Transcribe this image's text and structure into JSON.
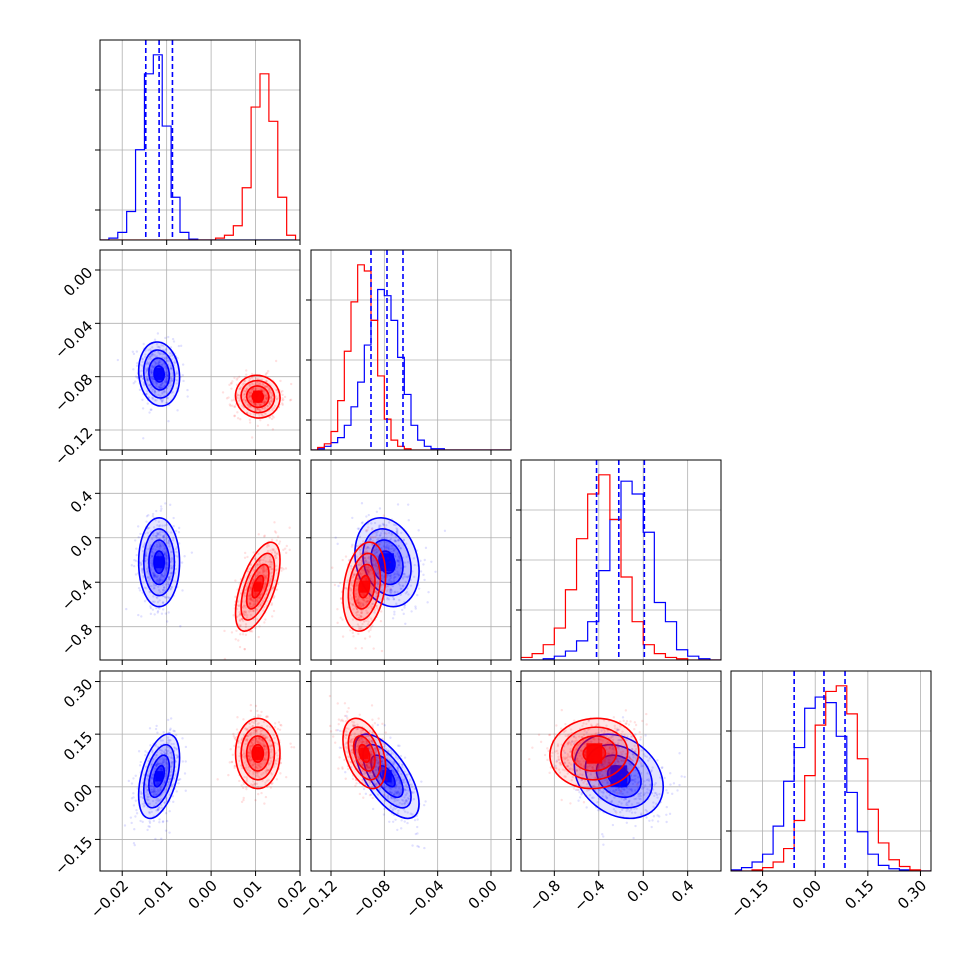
{
  "chart_data": {
    "type": "corner",
    "title": "",
    "parameters": [
      "",
      "",
      "",
      ""
    ],
    "series": [
      {
        "color": "#0000ff",
        "means": [
          -0.0117,
          -0.078,
          -0.22,
          0.03
        ],
        "sds": [
          0.0023,
          0.012,
          0.2,
          0.06
        ],
        "correlations": [
          [
            1,
            -0.1,
            0.0,
            0.45
          ],
          [
            -0.1,
            1,
            -0.2,
            -0.65
          ],
          [
            0.0,
            -0.2,
            1,
            -0.25
          ],
          [
            0.45,
            -0.65,
            -0.25,
            1
          ]
        ],
        "quantile_lines": [
          [
            -0.0147,
            -0.0117,
            -0.0087
          ],
          [
            -0.09,
            -0.078,
            -0.066
          ],
          [
            -0.42,
            -0.22,
            0.01
          ],
          [
            -0.06,
            0.025,
            0.085
          ]
        ]
      },
      {
        "color": "#ff0000",
        "means": [
          0.0105,
          -0.095,
          -0.44,
          0.095
        ],
        "sds": [
          0.0025,
          0.008,
          0.2,
          0.05
        ],
        "correlations": [
          [
            1,
            -0.05,
            0.6,
            0.0
          ],
          [
            -0.05,
            1,
            0.25,
            -0.4
          ],
          [
            0.6,
            0.25,
            1,
            0.05
          ],
          [
            0.0,
            -0.4,
            0.05,
            1
          ]
        ]
      }
    ],
    "diagonal_histograms": [
      {
        "parameter": 0,
        "xlim": [
          -0.025,
          0.02
        ],
        "bin_edges": [
          -0.025,
          -0.023,
          -0.021,
          -0.019,
          -0.017,
          -0.015,
          -0.013,
          -0.011,
          -0.009,
          -0.007,
          -0.005,
          -0.003,
          -0.001,
          0.001,
          0.003,
          0.005,
          0.007,
          0.009,
          0.011,
          0.013,
          0.015,
          0.017,
          0.019
        ],
        "blue": [
          0,
          2,
          8,
          30,
          95,
          175,
          195,
          120,
          45,
          8,
          1,
          0,
          0,
          0,
          0,
          0,
          0,
          0,
          0,
          0,
          0,
          0
        ],
        "red": [
          0,
          0,
          0,
          0,
          0,
          0,
          0,
          0,
          0,
          0,
          0,
          0,
          0,
          2,
          5,
          15,
          55,
          140,
          175,
          125,
          45,
          5
        ]
      },
      {
        "parameter": 1,
        "xlim": [
          -0.135,
          0.015
        ],
        "bin_edges": [
          -0.135,
          -0.13,
          -0.125,
          -0.12,
          -0.115,
          -0.11,
          -0.105,
          -0.1,
          -0.095,
          -0.09,
          -0.085,
          -0.08,
          -0.075,
          -0.07,
          -0.065,
          -0.06,
          -0.055,
          -0.05,
          -0.045,
          -0.04,
          -0.035,
          -0.03,
          -0.025,
          -0.02,
          -0.015,
          -0.01,
          -0.005,
          0.0,
          0.005,
          0.01,
          0.015
        ],
        "blue": [
          0,
          1,
          3,
          6,
          10,
          20,
          35,
          55,
          85,
          105,
          130,
          125,
          105,
          75,
          45,
          20,
          8,
          3,
          1,
          1,
          0,
          0,
          0,
          0,
          0,
          0,
          0,
          0,
          0,
          0
        ],
        "red": [
          0,
          2,
          5,
          15,
          40,
          80,
          120,
          150,
          145,
          105,
          60,
          25,
          8,
          3,
          1,
          0,
          0,
          0,
          0,
          0,
          0,
          0,
          0,
          0,
          0,
          0,
          0,
          0,
          0,
          0
        ]
      },
      {
        "parameter": 2,
        "xlim": [
          -1.1,
          0.7
        ],
        "bin_edges": [
          -1.1,
          -1.0,
          -0.9,
          -0.8,
          -0.7,
          -0.6,
          -0.5,
          -0.4,
          -0.3,
          -0.2,
          -0.1,
          0.0,
          0.1,
          0.2,
          0.3,
          0.4,
          0.5,
          0.6,
          0.7
        ],
        "blue": [
          0,
          0,
          1,
          3,
          7,
          15,
          30,
          70,
          110,
          140,
          130,
          100,
          45,
          30,
          8,
          3,
          1,
          0
        ],
        "red": [
          2,
          5,
          12,
          25,
          55,
          95,
          130,
          145,
          110,
          65,
          30,
          12,
          5,
          2,
          1,
          0,
          0,
          0
        ]
      },
      {
        "parameter": 3,
        "xlim": [
          -0.24,
          0.33
        ],
        "bin_edges": [
          -0.24,
          -0.21,
          -0.18,
          -0.15,
          -0.12,
          -0.09,
          -0.06,
          -0.03,
          0.0,
          0.03,
          0.06,
          0.09,
          0.12,
          0.15,
          0.18,
          0.21,
          0.24,
          0.27,
          0.3,
          0.33
        ],
        "blue": [
          1,
          3,
          8,
          15,
          40,
          80,
          110,
          145,
          155,
          150,
          120,
          70,
          35,
          15,
          5,
          2,
          1,
          0,
          0
        ],
        "red": [
          0,
          0,
          1,
          3,
          8,
          20,
          45,
          85,
          130,
          160,
          165,
          140,
          100,
          55,
          25,
          10,
          4,
          1,
          0
        ]
      }
    ],
    "ranges": [
      [
        -0.025,
        0.02
      ],
      [
        -0.135,
        0.015
      ],
      [
        -1.1,
        0.7
      ],
      [
        -0.24,
        0.33
      ]
    ],
    "ticks": [
      {
        "values": [
          -0.02,
          -0.01,
          0.0,
          0.01,
          0.02
        ],
        "labels": [
          "−0.02",
          "−0.01",
          "0.00",
          "0.01",
          "0.02"
        ]
      },
      {
        "values": [
          -0.12,
          -0.08,
          -0.04,
          0.0
        ],
        "labels": [
          "−0.12",
          "−0.08",
          "−0.04",
          "0.00"
        ]
      },
      {
        "values": [
          -0.8,
          -0.4,
          0.0,
          0.4
        ],
        "labels": [
          "−0.8",
          "−0.4",
          "0.0",
          "0.4"
        ]
      },
      {
        "values": [
          -0.15,
          0.0,
          0.15,
          0.3
        ],
        "labels": [
          "−0.15",
          "0.00",
          "0.15",
          "0.30"
        ]
      }
    ],
    "diag_ticks": [
      {
        "yticks": [
          0.15,
          0.45,
          0.75
        ]
      },
      {
        "yticks": [
          0.15,
          0.45,
          0.75
        ]
      },
      {
        "yticks": [
          0.25,
          0.5,
          0.75
        ]
      },
      {
        "yticks": [
          0.2,
          0.45,
          0.7
        ]
      }
    ],
    "grid": true,
    "legend": "none"
  }
}
